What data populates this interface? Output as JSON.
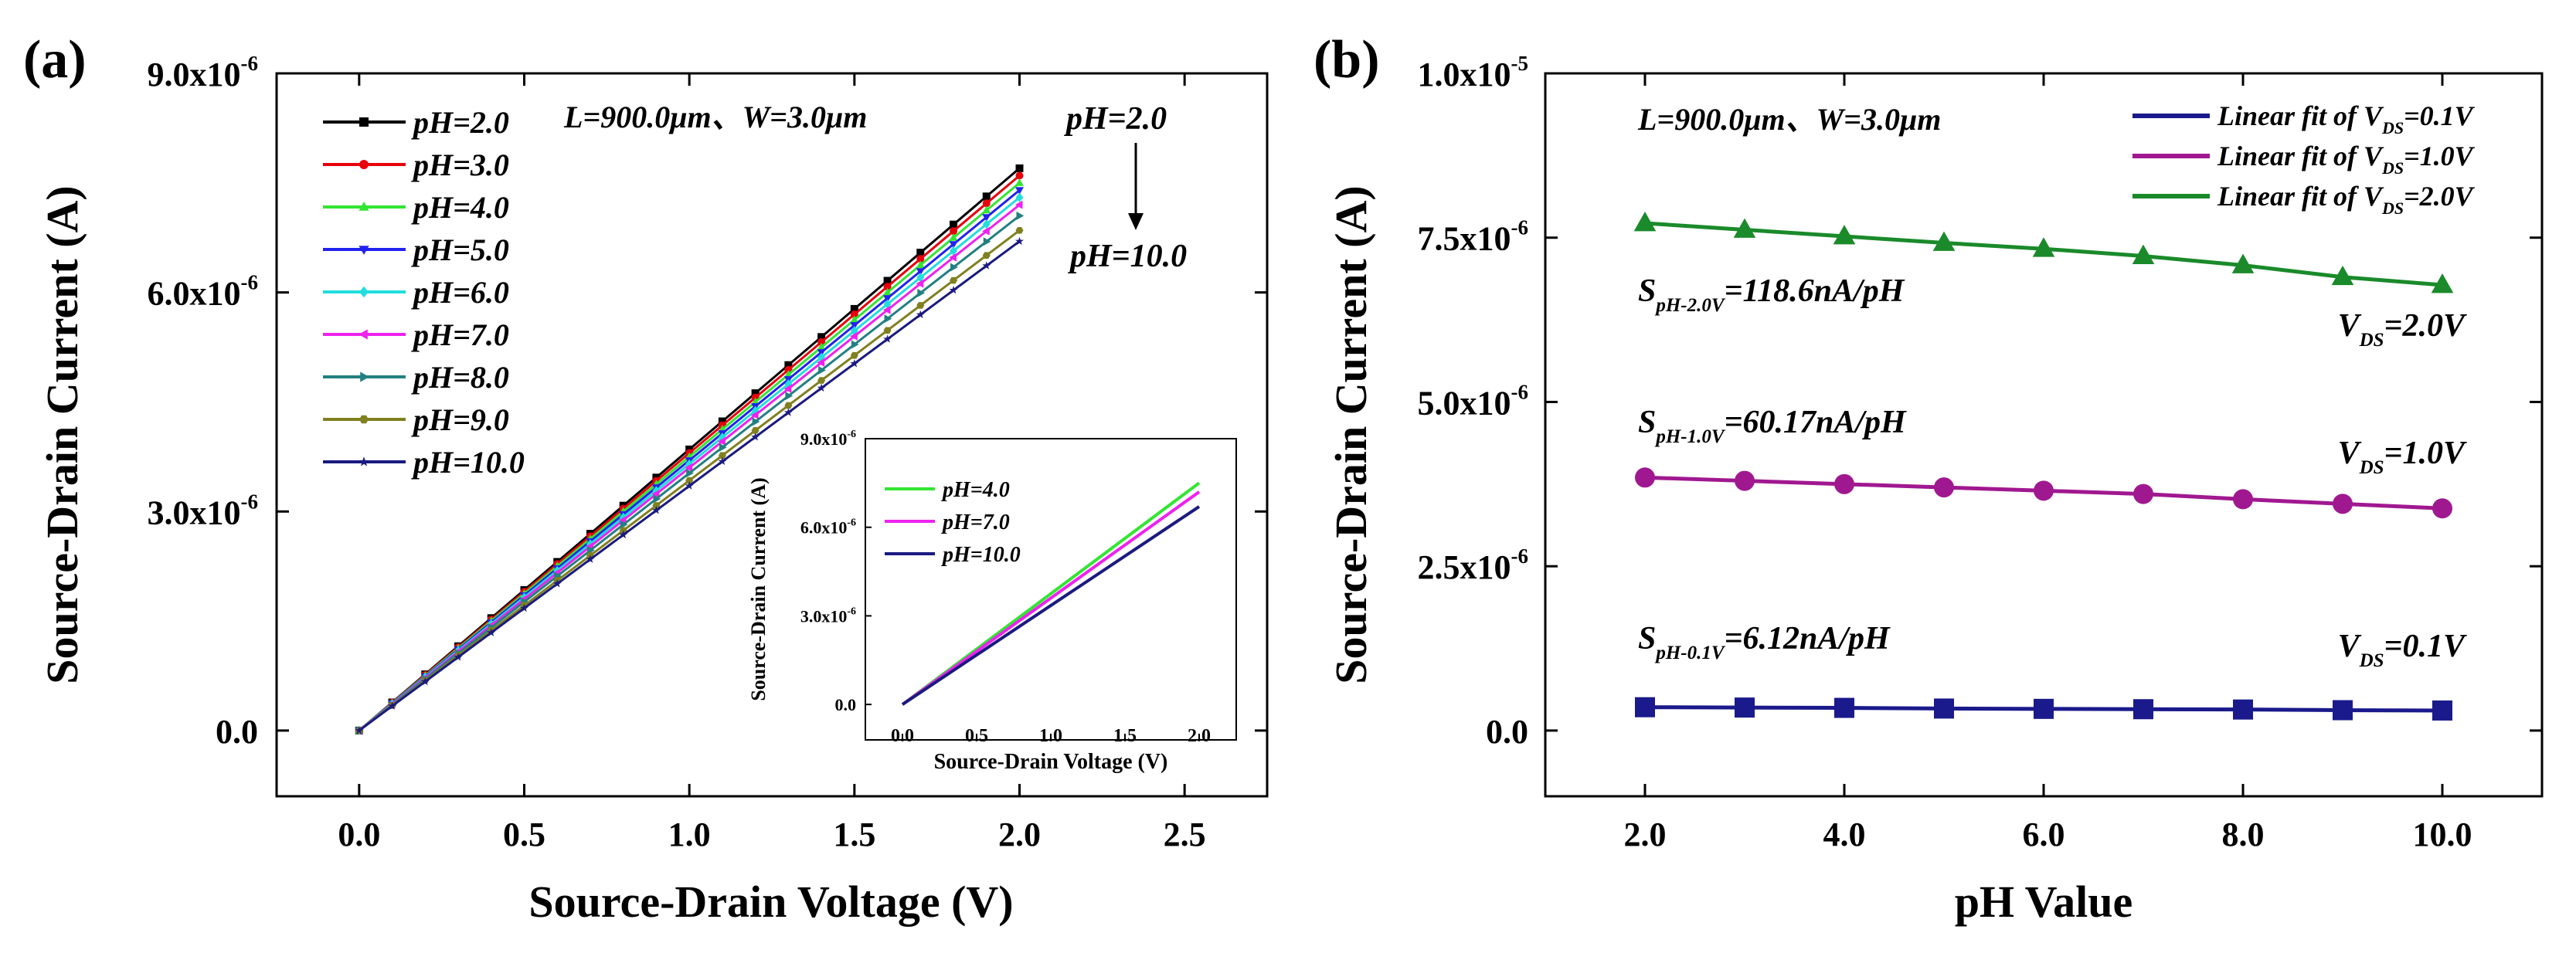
{
  "panels": {
    "a": {
      "label": "(a)",
      "xlabel": "Source-Drain Voltage (V)",
      "ylabel": "Source-Drain Current (A)",
      "dims": "L=900.0μm、W=3.0μm",
      "arrow_top": "pH=2.0",
      "arrow_bottom": "pH=10.0",
      "xticks": [
        "0.0",
        "0.5",
        "1.0",
        "1.5",
        "2.0",
        "2.5"
      ],
      "yticks": [
        {
          "mant": "0.0",
          "exp": ""
        },
        {
          "mant": "3.0x10",
          "exp": "-6"
        },
        {
          "mant": "6.0x10",
          "exp": "-6"
        },
        {
          "mant": "9.0x10",
          "exp": "-6"
        }
      ]
    },
    "inset": {
      "xlabel": "Source-Drain Voltage (V)",
      "ylabel": "Source-Drain Current (A)",
      "xticks": [
        "0.0",
        "0.5",
        "1.0",
        "1.5",
        "2.0"
      ],
      "yticks": [
        {
          "mant": "0.0",
          "exp": ""
        },
        {
          "mant": "3.0x10",
          "exp": "-6"
        },
        {
          "mant": "6.0x10",
          "exp": "-6"
        },
        {
          "mant": "9.0x10",
          "exp": "-6"
        }
      ]
    },
    "b": {
      "label": "(b)",
      "xlabel": "pH Value",
      "ylabel": "Source-Drain Current (A)",
      "dims": "L=900.0μm、W=3.0μm",
      "xticks": [
        "2.0",
        "4.0",
        "6.0",
        "8.0",
        "10.0"
      ],
      "yticks": [
        {
          "mant": "0.0",
          "exp": ""
        },
        {
          "mant": "2.5x10",
          "exp": "-6"
        },
        {
          "mant": "5.0x10",
          "exp": "-6"
        },
        {
          "mant": "7.5x10",
          "exp": "-6"
        },
        {
          "mant": "1.0x10",
          "exp": "-5"
        }
      ],
      "legend": [
        {
          "pre": "Linear fit of V",
          "sub": "DS",
          "post": "=0.1V"
        },
        {
          "pre": "Linear fit of V",
          "sub": "DS",
          "post": "=1.0V"
        },
        {
          "pre": "Linear fit of V",
          "sub": "DS",
          "post": "=2.0V"
        }
      ],
      "sens": [
        {
          "pre": "S",
          "sub": "pH-2.0V",
          "post": "=118.6nA/pH"
        },
        {
          "pre": "S",
          "sub": "pH-1.0V",
          "post": "=60.17nA/pH"
        },
        {
          "pre": "S",
          "sub": "pH-0.1V",
          "post": "=6.12nA/pH"
        }
      ],
      "vds": [
        {
          "pre": "V",
          "sub": "DS",
          "post": "=2.0V"
        },
        {
          "pre": "V",
          "sub": "DS",
          "post": "=1.0V"
        },
        {
          "pre": "V",
          "sub": "DS",
          "post": "=0.1V"
        }
      ]
    }
  },
  "chart_data": [
    {
      "panel": "a",
      "type": "line",
      "xlabel": "Source-Drain Voltage (V)",
      "ylabel": "Source-Drain Current (A)",
      "xlim": [
        -0.25,
        2.75
      ],
      "ylim": [
        -9e-07,
        9e-06
      ],
      "legend_position": "top-left",
      "x": [
        0.0,
        2.0
      ],
      "series": [
        {
          "name": "pH=2.0",
          "color": "#000000",
          "marker": "square",
          "values": [
            0.0,
            7.7e-06
          ]
        },
        {
          "name": "pH=3.0",
          "color": "#e8000b",
          "marker": "circle",
          "values": [
            0.0,
            7.6e-06
          ]
        },
        {
          "name": "pH=4.0",
          "color": "#33e533",
          "marker": "triangle-up",
          "values": [
            0.0,
            7.5e-06
          ]
        },
        {
          "name": "pH=5.0",
          "color": "#2222ee",
          "marker": "triangle-down",
          "values": [
            0.0,
            7.4e-06
          ]
        },
        {
          "name": "pH=6.0",
          "color": "#22dddd",
          "marker": "diamond",
          "values": [
            0.0,
            7.3e-06
          ]
        },
        {
          "name": "pH=7.0",
          "color": "#ee22ee",
          "marker": "triangle-left",
          "values": [
            0.0,
            7.2e-06
          ]
        },
        {
          "name": "pH=8.0",
          "color": "#228080",
          "marker": "triangle-right",
          "values": [
            0.0,
            7.05e-06
          ]
        },
        {
          "name": "pH=9.0",
          "color": "#808020",
          "marker": "hexagon",
          "values": [
            0.0,
            6.85e-06
          ]
        },
        {
          "name": "pH=10.0",
          "color": "#1a1a80",
          "marker": "star",
          "values": [
            0.0,
            6.7e-06
          ]
        }
      ]
    },
    {
      "panel": "a-inset",
      "type": "line",
      "xlabel": "Source-Drain Voltage (V)",
      "ylabel": "Source-Drain Current (A)",
      "xlim": [
        -0.25,
        2.25
      ],
      "ylim": [
        -1.2e-06,
        9e-06
      ],
      "legend_position": "top-left",
      "x": [
        0.0,
        2.0
      ],
      "series": [
        {
          "name": "pH=4.0",
          "color": "#33e533",
          "values": [
            0.0,
            7.5e-06
          ]
        },
        {
          "name": "pH=7.0",
          "color": "#ee22ee",
          "values": [
            0.0,
            7.2e-06
          ]
        },
        {
          "name": "pH=10.0",
          "color": "#1a1a80",
          "values": [
            0.0,
            6.7e-06
          ]
        }
      ]
    },
    {
      "panel": "b",
      "type": "line",
      "xlabel": "pH Value",
      "ylabel": "Source-Drain Current (A)",
      "xlim": [
        1.0,
        11.0
      ],
      "ylim": [
        -1e-06,
        1e-05
      ],
      "legend_position": "top-right",
      "x": [
        2.0,
        3.0,
        4.0,
        5.0,
        6.0,
        7.0,
        8.0,
        9.0,
        10.0
      ],
      "series": [
        {
          "name": "Linear fit of VDS=0.1V",
          "color": "#1a1a8c",
          "marker": "square",
          "values": [
            3.55e-07,
            3.5e-07,
            3.45e-07,
            3.35e-07,
            3.3e-07,
            3.25e-07,
            3.2e-07,
            3.1e-07,
            3.05e-07
          ]
        },
        {
          "name": "Linear fit of VDS=1.0V",
          "color": "#a01890",
          "marker": "circle",
          "values": [
            3.85e-06,
            3.8e-06,
            3.75e-06,
            3.7e-06,
            3.65e-06,
            3.6e-06,
            3.52e-06,
            3.45e-06,
            3.38e-06
          ]
        },
        {
          "name": "Linear fit of VDS=2.0V",
          "color": "#1a8a2a",
          "marker": "triangle-up",
          "values": [
            7.72e-06,
            7.62e-06,
            7.52e-06,
            7.42e-06,
            7.33e-06,
            7.22e-06,
            7.08e-06,
            6.9e-06,
            6.78e-06
          ]
        }
      ]
    }
  ]
}
